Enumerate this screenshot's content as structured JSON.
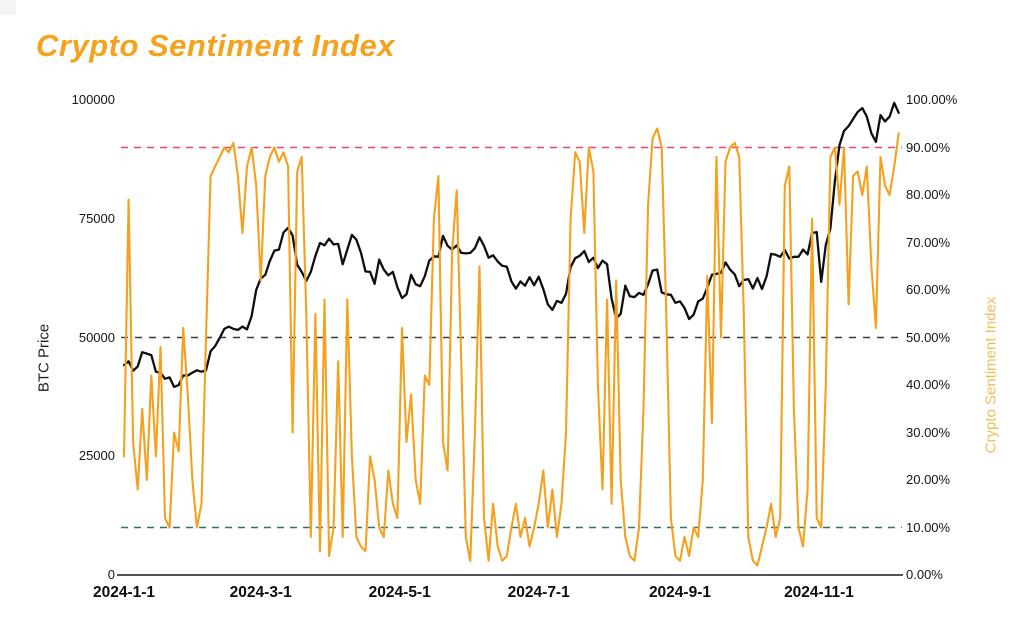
{
  "page": {
    "background": "#ffffff"
  },
  "chart_data": {
    "type": "line",
    "title": "Crypto Sentiment Index",
    "grid": "off",
    "legend": "none",
    "x_axis": {
      "unit": "date",
      "range_days": [
        0,
        341
      ],
      "tick_days": [
        0,
        60,
        121,
        182,
        244,
        305
      ],
      "tick_labels": [
        "2024-1-1",
        "2024-3-1",
        "2024-5-1",
        "2024-7-1",
        "2024-9-1",
        "2024-11-1"
      ]
    },
    "left_axis": {
      "title": "BTC Price",
      "range": [
        0,
        100000
      ],
      "ticks": [
        {
          "value": 0,
          "label": "0"
        },
        {
          "value": 25000,
          "label": "25000"
        },
        {
          "value": 50000,
          "label": "50000"
        },
        {
          "value": 75000,
          "label": "75000"
        },
        {
          "value": 100000,
          "label": "100000"
        }
      ]
    },
    "right_axis": {
      "title": "Crypto Sentiment Index",
      "range": [
        0,
        100
      ],
      "ticks": [
        {
          "value": 0,
          "label": "0.00%"
        },
        {
          "value": 10,
          "label": "10.00%"
        },
        {
          "value": 20,
          "label": "20.00%"
        },
        {
          "value": 30,
          "label": "30.00%"
        },
        {
          "value": 40,
          "label": "40.00%"
        },
        {
          "value": 50,
          "label": "50.00%"
        },
        {
          "value": 60,
          "label": "60.00%"
        },
        {
          "value": 70,
          "label": "70.00%"
        },
        {
          "value": 80,
          "label": "80.00%"
        },
        {
          "value": 90,
          "label": "90.00%"
        },
        {
          "value": 100,
          "label": "100.00%"
        }
      ]
    },
    "reference_lines": [
      {
        "axis": "right",
        "value": 90,
        "color": "#E24A6E",
        "style": "dashed",
        "dash": "7 6",
        "width": 1.6
      },
      {
        "axis": "right",
        "value": 50,
        "color": "#3A3A3A",
        "style": "dashed",
        "dash": "7 7",
        "width": 1.4
      },
      {
        "axis": "right",
        "value": 10,
        "color": "#35706C",
        "style": "dashed",
        "dash": "7 6",
        "width": 1.6
      }
    ],
    "axis_line_color": "#1a1a1a",
    "x_days": [
      0,
      2,
      4,
      6,
      8,
      10,
      12,
      14,
      16,
      18,
      20,
      22,
      24,
      26,
      28,
      30,
      32,
      34,
      36,
      38,
      40,
      42,
      44,
      46,
      48,
      50,
      52,
      54,
      56,
      58,
      60,
      62,
      64,
      66,
      68,
      70,
      72,
      74,
      76,
      78,
      80,
      82,
      84,
      86,
      88,
      90,
      92,
      94,
      96,
      98,
      100,
      102,
      104,
      106,
      108,
      110,
      112,
      114,
      116,
      118,
      120,
      122,
      124,
      126,
      128,
      130,
      132,
      134,
      136,
      138,
      140,
      142,
      144,
      146,
      148,
      150,
      152,
      154,
      156,
      158,
      160,
      162,
      164,
      166,
      168,
      170,
      172,
      174,
      176,
      178,
      180,
      182,
      184,
      186,
      188,
      190,
      192,
      194,
      196,
      198,
      200,
      202,
      204,
      206,
      208,
      210,
      212,
      214,
      216,
      218,
      220,
      222,
      224,
      226,
      228,
      230,
      232,
      234,
      236,
      238,
      240,
      242,
      244,
      246,
      248,
      250,
      252,
      254,
      256,
      258,
      260,
      262,
      264,
      266,
      268,
      270,
      272,
      274,
      276,
      278,
      280,
      282,
      284,
      286,
      288,
      290,
      292,
      294,
      296,
      298,
      300,
      302,
      304,
      306,
      308,
      310,
      312,
      314,
      316,
      318,
      320,
      322,
      324,
      326,
      328,
      330,
      332,
      334,
      336,
      338,
      340
    ],
    "series": [
      {
        "name": "BTC Price",
        "axis": "left",
        "color": "#0f0f0f",
        "line_width": 2.3,
        "values": [
          44200,
          45000,
          43000,
          43900,
          46900,
          46600,
          46300,
          42800,
          42600,
          41300,
          41600,
          39600,
          40000,
          42000,
          42000,
          42600,
          43100,
          42800,
          43100,
          47100,
          48200,
          49900,
          51800,
          52300,
          51800,
          51600,
          52300,
          51700,
          54500,
          60000,
          62400,
          63200,
          66100,
          68300,
          68500,
          72100,
          73100,
          71500,
          65300,
          63800,
          61900,
          63800,
          67200,
          69900,
          69400,
          70800,
          69600,
          69700,
          65400,
          68500,
          71600,
          70600,
          67800,
          63900,
          63800,
          61300,
          66400,
          64300,
          63100,
          63800,
          60600,
          58300,
          59100,
          63200,
          61200,
          60800,
          62900,
          66200,
          67100,
          67000,
          71400,
          69300,
          68500,
          69400,
          67800,
          67700,
          67800,
          68800,
          71100,
          69300,
          66800,
          67300,
          66000,
          65100,
          64900,
          61800,
          60300,
          61800,
          60900,
          62700,
          61000,
          62800,
          60200,
          57000,
          55800,
          57700,
          57300,
          59200,
          64800,
          66700,
          67200,
          68200,
          65900,
          66800,
          64600,
          66200,
          65400,
          58200,
          54000,
          55000,
          60900,
          58700,
          58500,
          59400,
          59000,
          61200,
          64100,
          64300,
          59500,
          59100,
          59000,
          57300,
          57600,
          56200,
          53900,
          54800,
          57600,
          58200,
          60500,
          63200,
          63400,
          63600,
          65800,
          64300,
          63300,
          60800,
          62100,
          62300,
          60300,
          62500,
          60200,
          62900,
          67600,
          67400,
          67000,
          68400,
          66600,
          67000,
          67000,
          68500,
          67500,
          72000,
          72200,
          61700,
          69500,
          73000,
          83000,
          90500,
          93500,
          94500,
          96000,
          97500,
          98300,
          96500,
          93000,
          91200,
          96800,
          95500,
          96500,
          99400,
          97300
        ]
      },
      {
        "name": "Crypto Sentiment Index",
        "axis": "right",
        "color": "#F5A01E",
        "line_width": 2.1,
        "values": [
          25,
          79,
          28,
          18,
          35,
          20,
          42,
          25,
          48,
          12,
          10,
          30,
          26,
          52,
          38,
          20,
          10,
          15,
          50,
          84,
          86,
          88,
          90,
          89,
          91,
          84,
          72,
          86,
          90,
          82,
          62,
          84,
          88,
          90,
          87,
          89,
          86,
          30,
          85,
          88,
          55,
          8,
          55,
          5,
          58,
          4,
          10,
          45,
          8,
          58,
          25,
          8,
          6,
          5,
          25,
          20,
          10,
          8,
          22,
          15,
          12,
          52,
          28,
          38,
          20,
          15,
          42,
          40,
          75,
          84,
          28,
          22,
          68,
          81,
          45,
          8,
          3,
          30,
          65,
          12,
          3,
          15,
          6,
          3,
          4,
          10,
          15,
          8,
          12,
          6,
          10,
          15,
          22,
          10,
          18,
          8,
          15,
          30,
          75,
          89,
          87,
          72,
          90,
          85,
          40,
          18,
          58,
          15,
          62,
          20,
          8,
          4,
          3,
          10,
          35,
          78,
          92,
          94,
          90,
          55,
          12,
          4,
          3,
          8,
          4,
          10,
          8,
          20,
          63,
          32,
          88,
          50,
          87,
          90,
          91,
          88,
          55,
          8,
          3,
          2,
          6,
          10,
          15,
          8,
          12,
          82,
          86,
          35,
          10,
          6,
          18,
          75,
          12,
          10,
          40,
          88,
          90,
          78,
          90,
          57,
          84,
          85,
          80,
          86,
          65,
          52,
          88,
          82,
          80,
          86,
          93
        ]
      }
    ]
  }
}
